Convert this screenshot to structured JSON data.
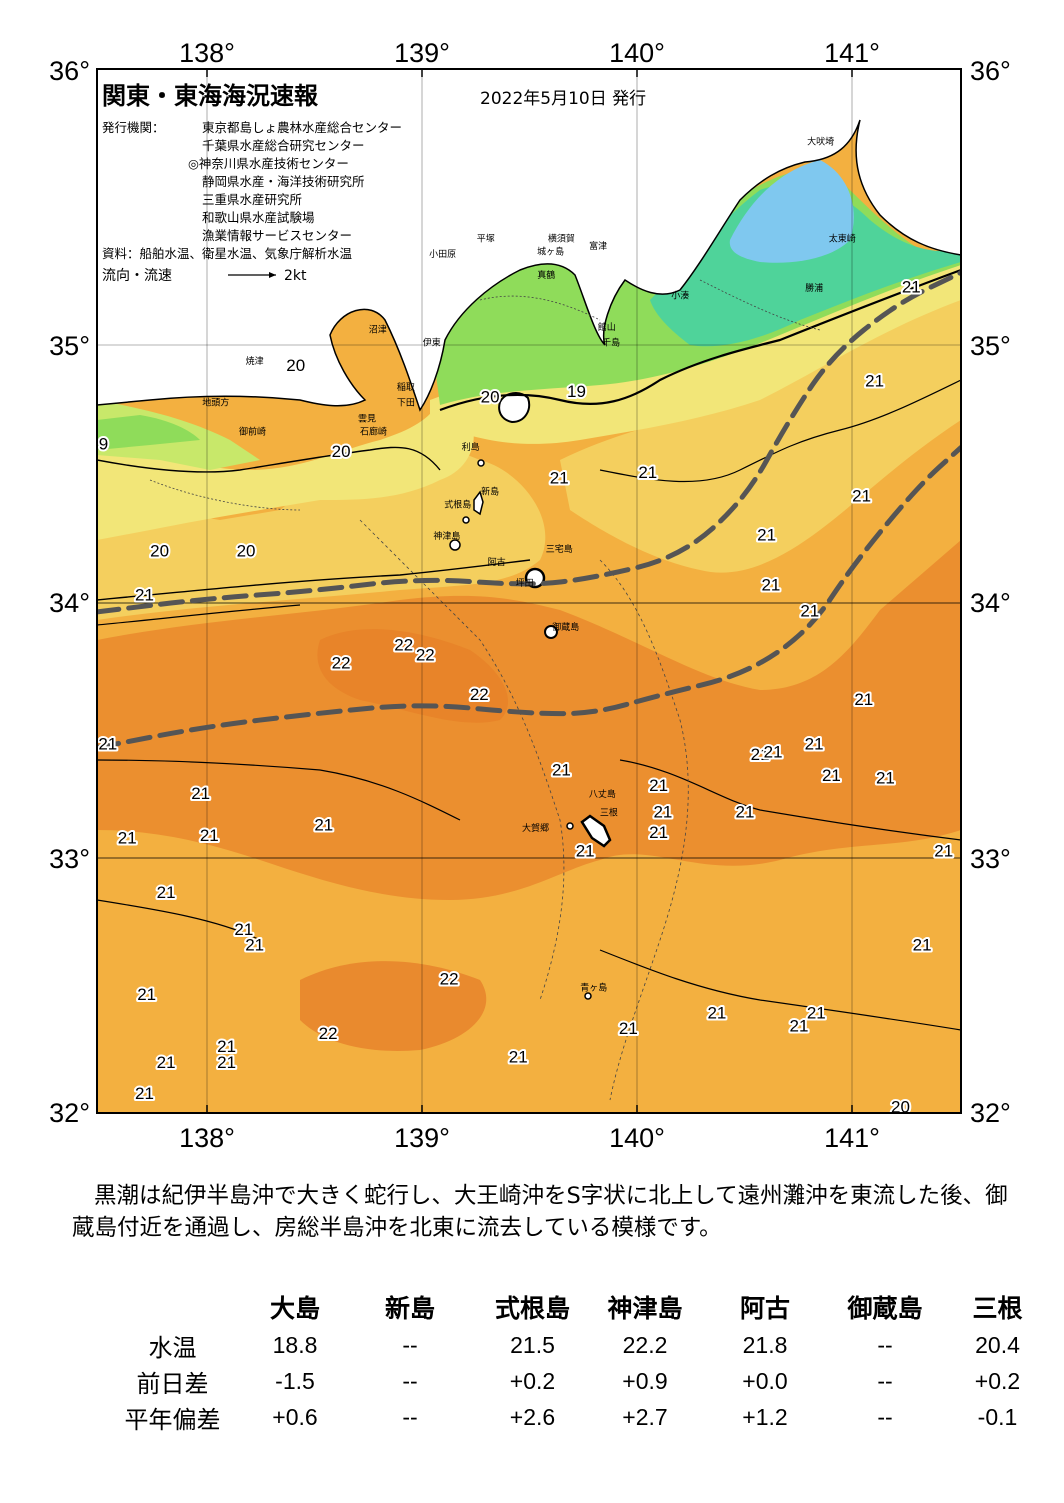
{
  "header": {
    "title": "関東・東海海況速報",
    "date": "2022年5月10日 発行",
    "issuer_label": "発行機関：",
    "issuers": [
      "東京都島しょ農林水産総合センター",
      "千葉県水産総合研究センター",
      "◎神奈川県水産技術センター",
      "静岡県水産・海洋技術研究所",
      "三重県水産研究所",
      "和歌山県水産試験場",
      "漁業情報サービスセンター"
    ],
    "sources": "資料：船舶水温、衛星水温、気象庁解析水温",
    "flow_label": "流向・流速",
    "flow_unit": "2kt"
  },
  "axes": {
    "lon_labels": [
      "138°",
      "139°",
      "140°",
      "141°"
    ],
    "lat_labels": [
      "36°",
      "35°",
      "34°",
      "33°",
      "32°"
    ]
  },
  "places": [
    {
      "name": "大吠埼",
      "lon": 140.85,
      "lat": 35.71
    },
    {
      "name": "太東崎",
      "lon": 140.95,
      "lat": 35.34
    },
    {
      "name": "勝浦",
      "lon": 140.82,
      "lat": 35.15
    },
    {
      "name": "小湊",
      "lon": 140.2,
      "lat": 35.12
    },
    {
      "name": "館山",
      "lon": 139.86,
      "lat": 35.0
    },
    {
      "name": "千島",
      "lon": 139.88,
      "lat": 34.94
    },
    {
      "name": "富津",
      "lon": 139.82,
      "lat": 35.31
    },
    {
      "name": "横須賀",
      "lon": 139.65,
      "lat": 35.34
    },
    {
      "name": "城ヶ島",
      "lon": 139.6,
      "lat": 35.29
    },
    {
      "name": "平塚",
      "lon": 139.3,
      "lat": 35.34
    },
    {
      "name": "小田原",
      "lon": 139.1,
      "lat": 35.28
    },
    {
      "name": "真鶴",
      "lon": 139.58,
      "lat": 35.2
    },
    {
      "name": "沼津",
      "lon": 138.8,
      "lat": 34.99
    },
    {
      "name": "伊東",
      "lon": 139.05,
      "lat": 34.94
    },
    {
      "name": "焼津",
      "lon": 138.23,
      "lat": 34.87
    },
    {
      "name": "稲取",
      "lon": 138.93,
      "lat": 34.77
    },
    {
      "name": "下田",
      "lon": 138.93,
      "lat": 34.71
    },
    {
      "name": "御前崎",
      "lon": 138.22,
      "lat": 34.6
    },
    {
      "name": "石廊崎",
      "lon": 138.78,
      "lat": 34.6
    },
    {
      "name": "地頭方",
      "lon": 138.05,
      "lat": 34.71
    },
    {
      "name": "雲見",
      "lon": 138.75,
      "lat": 34.65
    },
    {
      "name": "利島",
      "lon": 139.23,
      "lat": 34.54
    },
    {
      "name": "新島",
      "lon": 139.32,
      "lat": 34.37
    },
    {
      "name": "式根島",
      "lon": 139.17,
      "lat": 34.32
    },
    {
      "name": "神津島",
      "lon": 139.12,
      "lat": 34.2
    },
    {
      "name": "三宅島",
      "lon": 139.64,
      "lat": 34.15
    },
    {
      "name": "阿古",
      "lon": 139.35,
      "lat": 34.1
    },
    {
      "name": "坪田",
      "lon": 139.48,
      "lat": 34.02
    },
    {
      "name": "御蔵島",
      "lon": 139.67,
      "lat": 33.85
    },
    {
      "name": "八丈島",
      "lon": 139.84,
      "lat": 33.21
    },
    {
      "name": "三根",
      "lon": 139.87,
      "lat": 33.14
    },
    {
      "name": "大賀郷",
      "lon": 139.53,
      "lat": 33.08
    },
    {
      "name": "青ヶ島",
      "lon": 139.8,
      "lat": 32.47
    }
  ],
  "temperature_labels": [
    {
      "text": "20",
      "lon": 138.42,
      "lat": 34.86
    },
    {
      "text": "20",
      "lon": 139.32,
      "lat": 34.74
    },
    {
      "text": "19",
      "lon": 139.72,
      "lat": 34.76
    },
    {
      "text": "9",
      "lon": 137.53,
      "lat": 34.56
    },
    {
      "text": "20",
      "lon": 138.63,
      "lat": 34.53
    },
    {
      "text": "21",
      "lon": 139.64,
      "lat": 34.43
    },
    {
      "text": "21",
      "lon": 140.05,
      "lat": 34.45
    },
    {
      "text": "21",
      "lon": 141.27,
      "lat": 35.16
    },
    {
      "text": "21",
      "lon": 141.1,
      "lat": 34.8
    },
    {
      "text": "21",
      "lon": 141.04,
      "lat": 34.36
    },
    {
      "text": "21",
      "lon": 140.6,
      "lat": 34.21
    },
    {
      "text": "21",
      "lon": 140.62,
      "lat": 34.02
    },
    {
      "text": "21",
      "lon": 140.8,
      "lat": 33.92
    },
    {
      "text": "20",
      "lon": 137.79,
      "lat": 34.15
    },
    {
      "text": "20",
      "lon": 138.19,
      "lat": 34.15
    },
    {
      "text": "21",
      "lon": 137.72,
      "lat": 33.98
    },
    {
      "text": "22",
      "lon": 138.92,
      "lat": 33.79
    },
    {
      "text": "22",
      "lon": 139.02,
      "lat": 33.75
    },
    {
      "text": "22",
      "lon": 138.63,
      "lat": 33.72
    },
    {
      "text": "22",
      "lon": 139.27,
      "lat": 33.6
    },
    {
      "text": "21",
      "lon": 141.05,
      "lat": 33.58
    },
    {
      "text": "21",
      "lon": 137.55,
      "lat": 33.41
    },
    {
      "text": "21",
      "lon": 139.65,
      "lat": 33.31
    },
    {
      "text": "21",
      "lon": 140.57,
      "lat": 33.37
    },
    {
      "text": "21",
      "lon": 140.63,
      "lat": 33.38
    },
    {
      "text": "21",
      "lon": 140.82,
      "lat": 33.41
    },
    {
      "text": "21",
      "lon": 140.9,
      "lat": 33.29
    },
    {
      "text": "21",
      "lon": 141.15,
      "lat": 33.28
    },
    {
      "text": "21",
      "lon": 137.98,
      "lat": 33.22
    },
    {
      "text": "21",
      "lon": 138.55,
      "lat": 33.1
    },
    {
      "text": "21",
      "lon": 140.1,
      "lat": 33.25
    },
    {
      "text": "21",
      "lon": 140.12,
      "lat": 33.15
    },
    {
      "text": "21",
      "lon": 140.1,
      "lat": 33.07
    },
    {
      "text": "21",
      "lon": 140.5,
      "lat": 33.15
    },
    {
      "text": "21",
      "lon": 137.64,
      "lat": 33.05
    },
    {
      "text": "21",
      "lon": 138.02,
      "lat": 33.06
    },
    {
      "text": "21",
      "lon": 139.76,
      "lat": 33.0
    },
    {
      "text": "21",
      "lon": 141.42,
      "lat": 33.0
    },
    {
      "text": "21",
      "lon": 137.82,
      "lat": 32.84
    },
    {
      "text": "21",
      "lon": 138.18,
      "lat": 32.7
    },
    {
      "text": "21",
      "lon": 138.23,
      "lat": 32.64
    },
    {
      "text": "21",
      "lon": 141.32,
      "lat": 32.64
    },
    {
      "text": "22",
      "lon": 139.13,
      "lat": 32.51
    },
    {
      "text": "21",
      "lon": 137.73,
      "lat": 32.45
    },
    {
      "text": "21",
      "lon": 139.96,
      "lat": 32.32
    },
    {
      "text": "21",
      "lon": 140.37,
      "lat": 32.38
    },
    {
      "text": "21",
      "lon": 140.75,
      "lat": 32.33
    },
    {
      "text": "21",
      "lon": 140.83,
      "lat": 32.38
    },
    {
      "text": "22",
      "lon": 138.57,
      "lat": 32.3
    },
    {
      "text": "21",
      "lon": 138.1,
      "lat": 32.25
    },
    {
      "text": "21",
      "lon": 138.1,
      "lat": 32.19
    },
    {
      "text": "21",
      "lon": 137.82,
      "lat": 32.19
    },
    {
      "text": "21",
      "lon": 139.45,
      "lat": 32.21
    },
    {
      "text": "21",
      "lon": 137.72,
      "lat": 32.07
    },
    {
      "text": "20",
      "lon": 141.22,
      "lat": 32.02
    }
  ],
  "kuroshio_path": {
    "lower_edge": [
      [
        137.5,
        33.4
      ],
      [
        138.0,
        33.48
      ],
      [
        138.5,
        33.53
      ],
      [
        139.0,
        33.57
      ],
      [
        139.5,
        33.53
      ],
      [
        139.8,
        33.53
      ],
      [
        140.1,
        33.6
      ],
      [
        140.5,
        33.68
      ],
      [
        140.8,
        33.85
      ],
      [
        141.0,
        34.1
      ],
      [
        141.3,
        34.4
      ],
      [
        141.5,
        34.55
      ]
    ],
    "upper_edge": [
      [
        137.5,
        33.92
      ],
      [
        138.0,
        33.97
      ],
      [
        138.5,
        34.0
      ],
      [
        139.0,
        34.05
      ],
      [
        139.5,
        34.02
      ],
      [
        139.8,
        34.05
      ],
      [
        140.2,
        34.13
      ],
      [
        140.5,
        34.35
      ],
      [
        140.7,
        34.65
      ],
      [
        140.9,
        34.9
      ],
      [
        141.2,
        35.1
      ],
      [
        141.5,
        35.22
      ]
    ]
  },
  "summary": "黒潮は紀伊半島沖で大きく蛇行し、大王崎沖をS字状に北上して遠州灘沖を東流した後、御蔵島付近を通過し、房総半島沖を北東に流去している模様です。",
  "table": {
    "columns": [
      "大島",
      "新島",
      "式根島",
      "神津島",
      "阿古",
      "御蔵島",
      "三根"
    ],
    "rows": [
      {
        "label": "水温",
        "values": [
          "18.8",
          "--",
          "21.5",
          "22.2",
          "21.8",
          "--",
          "20.4"
        ]
      },
      {
        "label": "前日差",
        "values": [
          "-1.5",
          "--",
          "+0.2",
          "+0.9",
          "+0.0",
          "--",
          "+0.2"
        ]
      },
      {
        "label": "平年偏差",
        "values": [
          "+0.6",
          "--",
          "+2.6",
          "+2.7",
          "+1.2",
          "--",
          "-0.1"
        ]
      }
    ]
  },
  "colors": {
    "land": "#ffffff",
    "temp_14_15": "#7fc8ef",
    "temp_16_17": "#4fd39a",
    "temp_18_19": "#8fdc5a",
    "temp_19_20": "#c8e86a",
    "temp_20": "#f2e678",
    "temp_20_21": "#f4cf5e",
    "temp_21": "#f3b040",
    "temp_21_22": "#f0a038",
    "temp_22": "#e98a2e",
    "kuroshio_line": "#555555"
  }
}
